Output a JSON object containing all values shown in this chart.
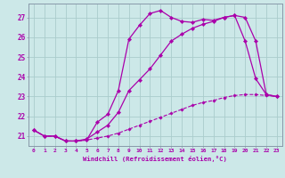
{
  "xlabel": "Windchill (Refroidissement éolien,°C)",
  "background_color": "#cce8e8",
  "grid_color": "#aacccc",
  "line_color": "#aa00aa",
  "xlim": [
    -0.5,
    23.5
  ],
  "ylim": [
    20.5,
    27.7
  ],
  "yticks": [
    21,
    22,
    23,
    24,
    25,
    26,
    27
  ],
  "xticks": [
    0,
    1,
    2,
    3,
    4,
    5,
    6,
    7,
    8,
    9,
    10,
    11,
    12,
    13,
    14,
    15,
    16,
    17,
    18,
    19,
    20,
    21,
    22,
    23
  ],
  "lines": [
    {
      "x": [
        0,
        1,
        2,
        3,
        4,
        5,
        6,
        7,
        8,
        9,
        10,
        11,
        12,
        13,
        14,
        15,
        16,
        17,
        18,
        19,
        20,
        21,
        22,
        23
      ],
      "y": [
        21.3,
        21.0,
        21.0,
        20.75,
        20.75,
        20.8,
        21.7,
        22.1,
        23.3,
        25.9,
        26.6,
        27.2,
        27.35,
        27.0,
        26.8,
        26.75,
        26.9,
        26.85,
        27.0,
        27.1,
        25.8,
        23.9,
        23.1,
        23.0
      ],
      "style": "-",
      "marker": "D",
      "markersize": 2.2,
      "linewidth": 0.9
    },
    {
      "x": [
        0,
        1,
        2,
        3,
        4,
        5,
        6,
        7,
        8,
        9,
        10,
        11,
        12,
        13,
        14,
        15,
        16,
        17,
        18,
        19,
        20,
        21,
        22,
        23
      ],
      "y": [
        21.3,
        21.0,
        21.0,
        20.75,
        20.75,
        20.85,
        21.2,
        21.55,
        22.2,
        23.3,
        23.85,
        24.4,
        25.1,
        25.8,
        26.15,
        26.45,
        26.65,
        26.8,
        27.0,
        27.1,
        27.0,
        25.8,
        23.1,
        23.0
      ],
      "style": "-",
      "marker": "D",
      "markersize": 2.2,
      "linewidth": 0.9
    },
    {
      "x": [
        0,
        1,
        2,
        3,
        4,
        5,
        6,
        7,
        8,
        9,
        10,
        11,
        12,
        13,
        14,
        15,
        16,
        17,
        18,
        19,
        20,
        21,
        22,
        23
      ],
      "y": [
        21.3,
        21.0,
        21.0,
        20.75,
        20.75,
        20.8,
        20.9,
        21.0,
        21.15,
        21.35,
        21.55,
        21.75,
        21.95,
        22.15,
        22.35,
        22.55,
        22.7,
        22.8,
        22.95,
        23.05,
        23.1,
        23.1,
        23.05,
        23.0
      ],
      "style": "--",
      "marker": "D",
      "markersize": 1.8,
      "linewidth": 0.8
    }
  ]
}
